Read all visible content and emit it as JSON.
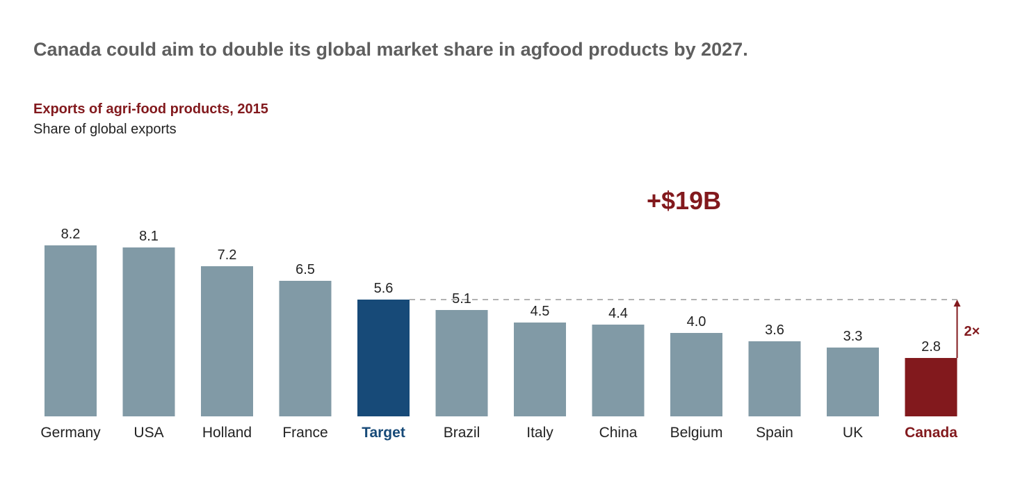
{
  "headline": "Canada could aim to double its global market share in agfood products by 2027.",
  "chart_data": {
    "type": "bar",
    "title": "Exports of agri-food products, 2015",
    "subtitle": "Share of global exports",
    "categories": [
      "Germany",
      "USA",
      "Holland",
      "France",
      "Target",
      "Brazil",
      "Italy",
      "China",
      "Belgium",
      "Spain",
      "UK",
      "Canada"
    ],
    "values": [
      8.2,
      8.1,
      7.2,
      6.5,
      5.6,
      5.1,
      4.5,
      4.4,
      4.0,
      3.6,
      3.3,
      2.8
    ],
    "ylim": [
      0,
      10
    ],
    "grid": false,
    "annotations": {
      "gain": "+$19B",
      "multiplier": "2×"
    },
    "colors": {
      "default": "#819aa6",
      "Target": "#174a78",
      "Canada": "#82191d"
    }
  }
}
